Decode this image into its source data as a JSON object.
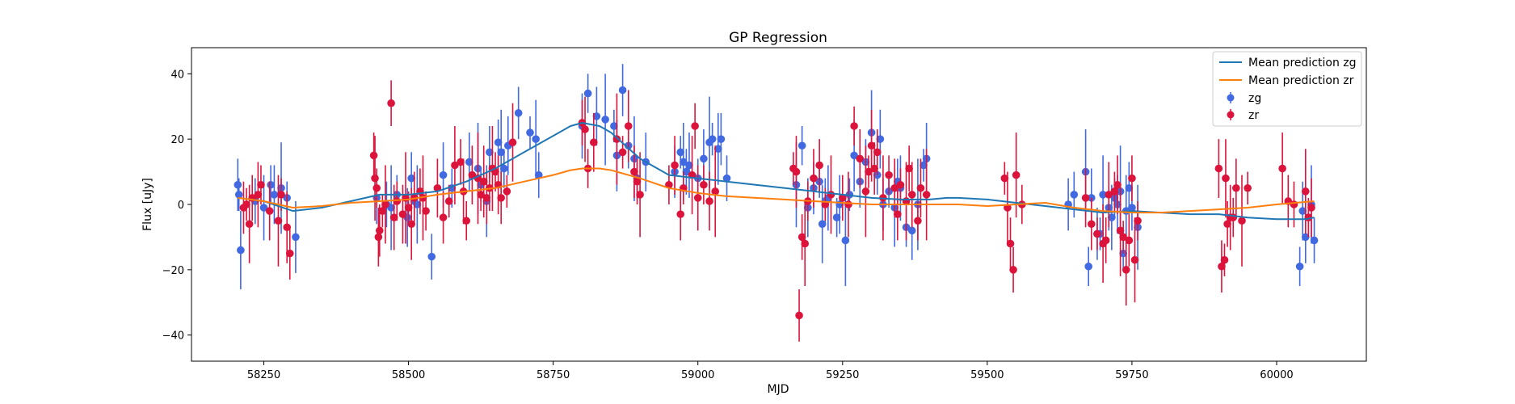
{
  "chart_data": {
    "type": "scatter",
    "title": "GP Regression",
    "xlabel": "MJD",
    "ylabel": "Flux [uJy]",
    "xlim": [
      58125,
      60155
    ],
    "ylim": [
      -48,
      48
    ],
    "xticks": [
      58250,
      58500,
      58750,
      59000,
      59250,
      59500,
      59750,
      60000
    ],
    "yticks": [
      -40,
      -20,
      0,
      20,
      40
    ],
    "grid": false,
    "legend_position": "top-right",
    "colors": {
      "mean_zg": "#1f77b4",
      "mean_zr": "#ff7f0e",
      "zg": "#4169e1",
      "zr": "#dc143c"
    },
    "series": [
      {
        "name": "Mean prediction zg",
        "kind": "line",
        "color": "#1f77b4",
        "x": [
          58205,
          58250,
          58300,
          58350,
          58400,
          58450,
          58500,
          58550,
          58600,
          58650,
          58700,
          58750,
          58780,
          58800,
          58830,
          58850,
          58900,
          58950,
          59000,
          59050,
          59100,
          59150,
          59200,
          59250,
          59300,
          59350,
          59400,
          59430,
          59450,
          59500,
          59550,
          59600,
          59650,
          59700,
          59750,
          59800,
          59850,
          59900,
          59950,
          60000,
          60050,
          60065
        ],
        "y": [
          2,
          1,
          -2,
          -1,
          1,
          3,
          3,
          4,
          7,
          11,
          16,
          21,
          24,
          25,
          24,
          22,
          14,
          9,
          8,
          7,
          6,
          5,
          4,
          3,
          2,
          1.5,
          1.5,
          2,
          2,
          1.5,
          0.5,
          -0.5,
          -1.5,
          -2.5,
          -2,
          -2.5,
          -3,
          -3,
          -4,
          -4.5,
          -4.5,
          -4
        ]
      },
      {
        "name": "Mean prediction zr",
        "kind": "line",
        "color": "#ff7f0e",
        "x": [
          58205,
          58250,
          58300,
          58350,
          58400,
          58450,
          58500,
          58550,
          58600,
          58650,
          58700,
          58750,
          58780,
          58800,
          58830,
          58850,
          58900,
          58950,
          59000,
          59050,
          59100,
          59150,
          59200,
          59250,
          59300,
          59350,
          59400,
          59450,
          59500,
          59550,
          59600,
          59650,
          59700,
          59750,
          59800,
          59850,
          59900,
          59950,
          60000,
          60065
        ],
        "y": [
          2,
          1,
          -1,
          -0.5,
          0.5,
          1,
          1.5,
          3,
          4,
          5,
          7,
          9,
          10.5,
          11,
          11,
          10.5,
          8,
          5,
          3.5,
          2.5,
          2,
          1.5,
          1,
          0.5,
          0,
          0,
          0,
          0,
          -0.5,
          0,
          0.5,
          -1,
          -2,
          -2.5,
          -2.5,
          -2,
          -1.5,
          -1,
          0,
          1
        ]
      },
      {
        "name": "zg",
        "kind": "errorbar",
        "color": "#4169e1",
        "x": [
          58205,
          58207,
          58210,
          58235,
          58250,
          58262,
          58268,
          58280,
          58290,
          58305,
          58445,
          58462,
          58470,
          58480,
          58498,
          58505,
          58510,
          58515,
          58540,
          58560,
          58575,
          58605,
          58620,
          58625,
          58635,
          58640,
          58655,
          58660,
          58665,
          58672,
          58690,
          58710,
          58720,
          58725,
          58800,
          58810,
          58825,
          58840,
          58855,
          58860,
          58870,
          58880,
          58890,
          58895,
          58910,
          58960,
          58970,
          58975,
          58980,
          58985,
          59000,
          59010,
          59020,
          59025,
          59035,
          59040,
          59050,
          59170,
          59180,
          59190,
          59200,
          59210,
          59215,
          59220,
          59225,
          59240,
          59245,
          59255,
          59262,
          59270,
          59280,
          59290,
          59300,
          59310,
          59315,
          59320,
          59330,
          59340,
          59345,
          59350,
          59360,
          59370,
          59380,
          59390,
          59395,
          59640,
          59650,
          59670,
          59675,
          59680,
          59690,
          59695,
          59700,
          59710,
          59715,
          59720,
          59725,
          59730,
          59735,
          59740,
          59745,
          59750,
          59760,
          60040,
          60045,
          60050,
          60055,
          60060,
          60065
        ],
        "y": [
          6,
          3,
          -14,
          1,
          -1,
          6,
          3,
          5,
          2,
          -10,
          2,
          0,
          -1,
          3,
          -4,
          8,
          1,
          0,
          -16,
          9,
          5,
          13,
          11,
          6,
          1,
          16,
          19,
          16,
          11,
          18,
          28,
          22,
          20,
          9,
          24,
          34,
          27,
          26,
          24,
          15,
          35,
          18,
          14,
          8,
          13,
          10,
          16,
          13,
          10,
          12,
          8,
          14,
          19,
          20,
          17,
          20,
          8,
          6,
          18,
          -1,
          5,
          7,
          -6,
          1,
          2,
          -4,
          0,
          -11,
          3,
          15,
          7,
          13,
          22,
          9,
          20,
          0,
          4,
          -1,
          7,
          5,
          -7,
          -8,
          0,
          12,
          14,
          0,
          3,
          10,
          -19,
          2,
          -9,
          -9,
          3,
          -1,
          -4,
          2,
          0,
          4,
          -15,
          -2,
          5,
          -1,
          -7,
          -19,
          -2,
          -10,
          -4,
          0,
          -11
        ]
      },
      {
        "name": "zr",
        "kind": "errorbar",
        "color": "#dc143c",
        "x": [
          58215,
          58220,
          58225,
          58230,
          58240,
          58245,
          58260,
          58275,
          58280,
          58290,
          58295,
          58440,
          58442,
          58445,
          58448,
          58450,
          58455,
          58460,
          58470,
          58475,
          58480,
          58490,
          58495,
          58500,
          58505,
          58510,
          58520,
          58525,
          58530,
          58550,
          58560,
          58570,
          58580,
          58590,
          58595,
          58600,
          58610,
          58620,
          58625,
          58630,
          58635,
          58640,
          58645,
          58650,
          58655,
          58660,
          58670,
          58680,
          58800,
          58805,
          58810,
          58820,
          58860,
          58870,
          58880,
          58890,
          58895,
          58900,
          58950,
          58960,
          58970,
          58975,
          58990,
          58995,
          59000,
          59010,
          59020,
          59030,
          59165,
          59170,
          59175,
          59180,
          59185,
          59190,
          59200,
          59210,
          59220,
          59230,
          59250,
          59260,
          59270,
          59280,
          59290,
          59295,
          59300,
          59305,
          59310,
          59320,
          59330,
          59340,
          59345,
          59350,
          59360,
          59365,
          59370,
          59380,
          59385,
          59395,
          59530,
          59535,
          59540,
          59545,
          59550,
          59560,
          59670,
          59680,
          59690,
          59700,
          59705,
          59710,
          59720,
          59725,
          59730,
          59735,
          59740,
          59745,
          59750,
          59755,
          59760,
          59900,
          59905,
          59910,
          59912,
          59915,
          59920,
          59925,
          59930,
          59940,
          59950,
          60010,
          60020,
          60030,
          60050,
          60055,
          60060
        ],
        "y": [
          -1,
          0,
          -6,
          2,
          3,
          6,
          -2,
          -5,
          3,
          -7,
          -15,
          15,
          8,
          5,
          -10,
          -8,
          -2,
          0,
          31,
          -4,
          1,
          -3,
          2,
          -1,
          -6,
          2,
          4,
          2,
          -2,
          5,
          -4,
          1,
          12,
          13,
          4,
          -5,
          9,
          8,
          3,
          7,
          2,
          5,
          11,
          10,
          6,
          2,
          4,
          19,
          25,
          23,
          11,
          19,
          20,
          16,
          24,
          10,
          7,
          3,
          6,
          12,
          -3,
          5,
          9,
          24,
          2,
          6,
          1,
          4,
          11,
          10,
          -34,
          -10,
          -12,
          1,
          8,
          12,
          0,
          3,
          2,
          0,
          24,
          14,
          4,
          10,
          18,
          11,
          16,
          2,
          9,
          5,
          -3,
          6,
          1,
          11,
          3,
          -5,
          5,
          3,
          8,
          -1,
          -12,
          -20,
          9,
          0,
          2,
          -6,
          -9,
          -12,
          -11,
          3,
          4,
          6,
          -8,
          -10,
          -20,
          -11,
          8,
          -17,
          -5,
          11,
          -19,
          -17,
          8,
          -6,
          -4,
          -4,
          5,
          -5,
          5,
          11,
          1,
          0,
          4,
          -4,
          -1
        ]
      }
    ],
    "legend": [
      "Mean prediction zg",
      "Mean prediction zr",
      "zg",
      "zr"
    ]
  }
}
